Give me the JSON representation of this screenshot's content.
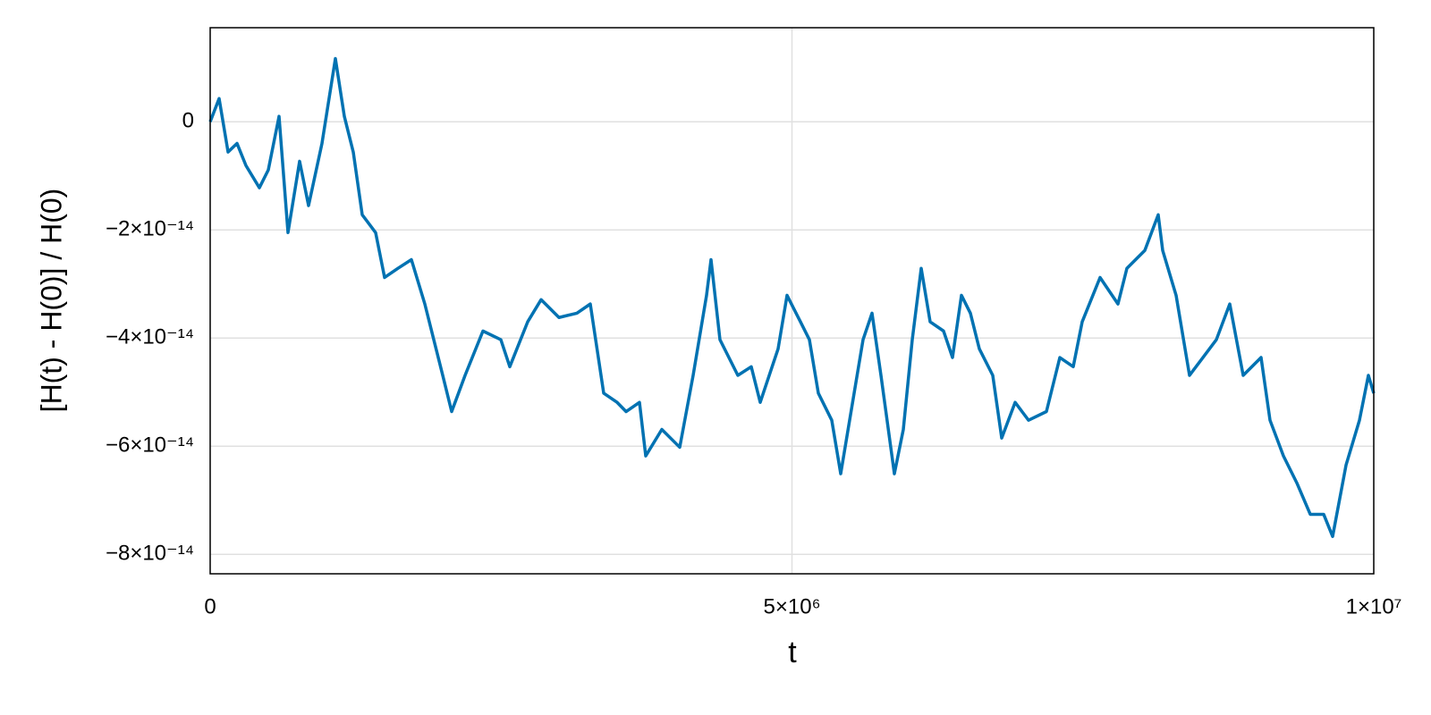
{
  "chart_data": {
    "type": "line",
    "xlabel": "t",
    "ylabel": "[H(t) - H(0)] / H(0)",
    "x": [
      0,
      76900,
      153700,
      230600,
      307500,
      422800,
      499600,
      591900,
      668700,
      768600,
      845500,
      960800,
      1076100,
      1153000,
      1229800,
      1306700,
      1422000,
      1498900,
      1614100,
      1729400,
      1844700,
      1998500,
      2075300,
      2190600,
      2344300,
      2498100,
      2574900,
      2728600,
      2843900,
      2997700,
      3151400,
      3266700,
      3382000,
      3497300,
      3574200,
      3689500,
      3743300,
      3881600,
      4035400,
      4150700,
      4265900,
      4304400,
      4381200,
      4534900,
      4650200,
      4727100,
      4880800,
      4957700,
      5073000,
      5149800,
      5226700,
      5342000,
      5418900,
      5534200,
      5611000,
      5687900,
      5764800,
      5880100,
      5957000,
      6033800,
      6110700,
      6187500,
      6302800,
      6379700,
      6456600,
      6533400,
      6610300,
      6725600,
      6802500,
      6917800,
      7033100,
      7186800,
      7302100,
      7417400,
      7494200,
      7647900,
      7801700,
      7878600,
      8032300,
      8147600,
      8186000,
      8301300,
      8416600,
      8531900,
      8647200,
      8762500,
      8877800,
      9031500,
      9108400,
      9223700,
      9339000,
      9454300,
      9569600,
      9646400,
      9761700,
      9877000,
      9953900,
      10000000
    ],
    "values": [
      0,
      4.3e-15,
      -5.6e-15,
      -4e-15,
      -8.1e-15,
      -1.22e-14,
      -8.9e-15,
      1e-15,
      -2.05e-14,
      -7.3e-15,
      -1.55e-14,
      -4e-15,
      1.17e-14,
      1e-15,
      -5.6e-15,
      -1.72e-14,
      -2.05e-14,
      -2.88e-14,
      -2.71e-14,
      -2.55e-14,
      -3.37e-14,
      -4.69e-14,
      -5.36e-14,
      -4.69e-14,
      -3.87e-14,
      -4.03e-14,
      -4.53e-14,
      -3.7e-14,
      -3.29e-14,
      -3.62e-14,
      -3.54e-14,
      -3.37e-14,
      -5.02e-14,
      -5.19e-14,
      -5.36e-14,
      -5.19e-14,
      -6.18e-14,
      -5.69e-14,
      -6.02e-14,
      -4.69e-14,
      -3.21e-14,
      -2.55e-14,
      -4.03e-14,
      -4.69e-14,
      -4.53e-14,
      -5.19e-14,
      -4.2e-14,
      -3.21e-14,
      -3.7e-14,
      -4.03e-14,
      -5.02e-14,
      -5.52e-14,
      -6.51e-14,
      -5.02e-14,
      -4.03e-14,
      -3.54e-14,
      -4.69e-14,
      -6.51e-14,
      -5.69e-14,
      -4.03e-14,
      -2.71e-14,
      -3.7e-14,
      -3.87e-14,
      -4.36e-14,
      -3.21e-14,
      -3.54e-14,
      -4.2e-14,
      -4.69e-14,
      -5.85e-14,
      -5.19e-14,
      -5.52e-14,
      -5.36e-14,
      -4.36e-14,
      -4.53e-14,
      -3.7e-14,
      -2.88e-14,
      -3.37e-14,
      -2.71e-14,
      -2.38e-14,
      -1.72e-14,
      -2.38e-14,
      -3.21e-14,
      -4.69e-14,
      -4.36e-14,
      -4.03e-14,
      -3.37e-14,
      -4.69e-14,
      -4.36e-14,
      -5.52e-14,
      -6.18e-14,
      -6.68e-14,
      -7.26e-14,
      -7.26e-14,
      -7.67e-14,
      -6.35e-14,
      -5.52e-14,
      -4.69e-14,
      -5.02e-14
    ],
    "color": "#0072b2",
    "xlim": [
      0,
      10000000
    ],
    "xticks": [
      0,
      {
        "value": 5000000,
        "label": "5×10⁶"
      },
      {
        "value": 10000000,
        "label": "1×10⁷"
      }
    ],
    "ylim": [
      -8.36e-14,
      1.74e-14
    ],
    "yticks": [
      0,
      {
        "value": -2e-14,
        "label": "−2×10⁻¹⁴"
      },
      {
        "value": -4e-14,
        "label": "−4×10⁻¹⁴"
      },
      {
        "value": -6e-14,
        "label": "−6×10⁻¹⁴"
      },
      {
        "value": -8e-14,
        "label": "−8×10⁻¹⁴"
      }
    ],
    "grid": true
  }
}
